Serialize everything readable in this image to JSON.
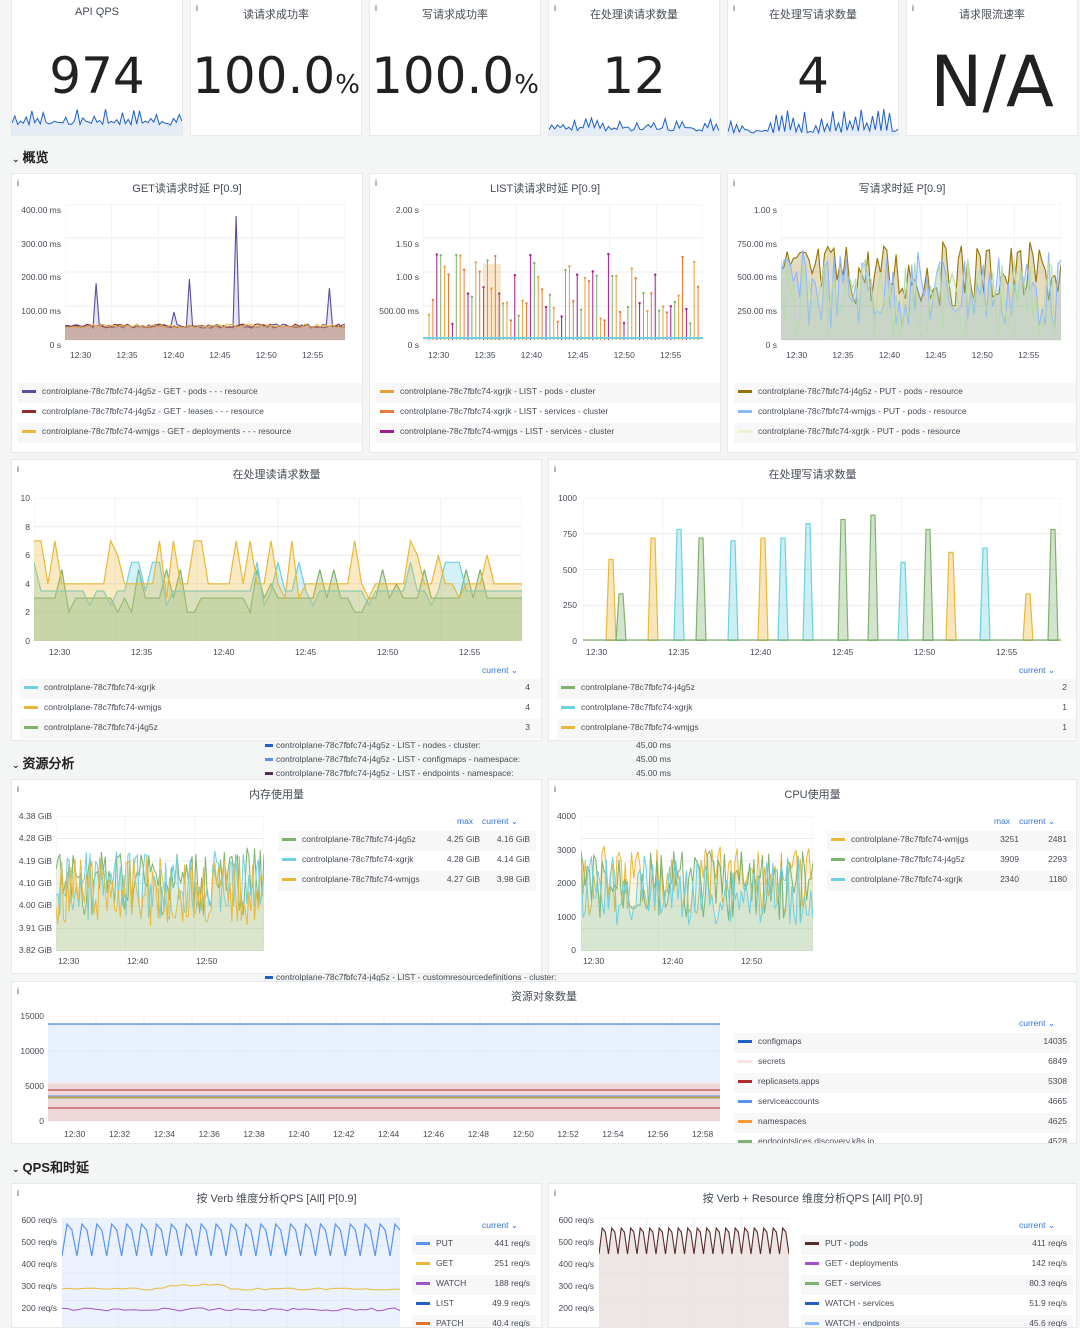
{
  "stats": [
    {
      "title": "API QPS",
      "value": "974",
      "unit": ""
    },
    {
      "title": "读请求成功率",
      "value": "100.0",
      "unit": "%"
    },
    {
      "title": "写请求成功率",
      "value": "100.0",
      "unit": "%"
    },
    {
      "title": "在处理读请求数量",
      "value": "12",
      "unit": ""
    },
    {
      "title": "在处理写请求数量",
      "value": "4",
      "unit": ""
    },
    {
      "title": "请求限流速率",
      "value": "N/A",
      "unit": ""
    }
  ],
  "rows": {
    "overview": "概览",
    "resource": "资源分析",
    "qps": "QPS和时延"
  },
  "info_icon": "i",
  "chevron": "⌄",
  "get_latency": {
    "title": "GET读请求时延 P[0.9]",
    "yticks": [
      "400.00 ms",
      "300.00 ms",
      "200.00 ms",
      "100.00 ms",
      "0 s"
    ],
    "xticks": [
      "12:30",
      "12:35",
      "12:40",
      "12:45",
      "12:50",
      "12:55"
    ],
    "legend": [
      {
        "label": "controlplane-78c7fbfc74-j4g5z - GET - pods - - - resource",
        "color": "#5c4ba0"
      },
      {
        "label": "controlplane-78c7fbfc74-j4g5z - GET - leases - - - resource",
        "color": "#8f2b2b"
      },
      {
        "label": "controlplane-78c7fbfc74-wmjgs - GET - deployments - - - resource",
        "color": "#eab839"
      }
    ]
  },
  "list_latency": {
    "title": "LIST读请求时延 P[0.9]",
    "yticks": [
      "2.00 s",
      "1.50 s",
      "1.00 s",
      "500.00 ms",
      "0 s"
    ],
    "xticks": [
      "12:30",
      "12:35",
      "12:40",
      "12:45",
      "12:50",
      "12:55"
    ],
    "legend": [
      {
        "label": "controlplane-78c7fbfc74-xgrjk - LIST - pods - cluster",
        "color": "#e5a039"
      },
      {
        "label": "controlplane-78c7fbfc74-xgrjk - LIST - services - cluster",
        "color": "#e57a39"
      },
      {
        "label": "controlplane-78c7fbfc74-wmjgs - LIST - services - cluster",
        "color": "#a01c8f"
      }
    ]
  },
  "write_latency": {
    "title": "写请求时延 P[0.9]",
    "yticks": [
      "1.00 s",
      "750.00 ms",
      "500.00 ms",
      "250.00 ms",
      "0 s"
    ],
    "xticks": [
      "12:30",
      "12:35",
      "12:40",
      "12:45",
      "12:50",
      "12:55"
    ],
    "legend": [
      {
        "label": "controlplane-78c7fbfc74-j4g5z - PUT - pods - resource",
        "color": "#967302"
      },
      {
        "label": "controlplane-78c7fbfc74-wmjgs - PUT - pods - resource",
        "color": "#8ab8ff"
      },
      {
        "label": "controlplane-78c7fbfc74-xgrjk - PUT - pods - resource",
        "color": "#e8f5cf"
      }
    ]
  },
  "read_inflight": {
    "title": "在处理读请求数量",
    "yticks": [
      "10",
      "8",
      "6",
      "4",
      "2",
      "0"
    ],
    "xticks": [
      "12:30",
      "12:35",
      "12:40",
      "12:45",
      "12:50",
      "12:55"
    ],
    "current_label": "current",
    "legend": [
      {
        "label": "controlplane-78c7fbfc74-xgrjk",
        "value": "4",
        "color": "#6ed0e0"
      },
      {
        "label": "controlplane-78c7fbfc74-wmjgs",
        "value": "4",
        "color": "#eab839"
      },
      {
        "label": "controlplane-78c7fbfc74-j4g5z",
        "value": "3",
        "color": "#7eb26d"
      }
    ]
  },
  "write_inflight": {
    "title": "在处理写请求数量",
    "yticks": [
      "1000",
      "750",
      "500",
      "250",
      "0"
    ],
    "xticks": [
      "12:30",
      "12:35",
      "12:40",
      "12:45",
      "12:50",
      "12:55"
    ],
    "current_label": "current",
    "legend": [
      {
        "label": "controlplane-78c7fbfc74-j4g5z",
        "value": "2",
        "color": "#7eb26d"
      },
      {
        "label": "controlplane-78c7fbfc74-xgrjk",
        "value": "1",
        "color": "#6ed0e0"
      },
      {
        "label": "controlplane-78c7fbfc74-wmjgs",
        "value": "1",
        "color": "#eab839"
      }
    ]
  },
  "overlay_tooltip": {
    "rows": [
      {
        "label": "controlplane-78c7fbfc74-j4g5z - LIST - nodes - cluster:",
        "value": "45.00 ms"
      },
      {
        "label": "controlplane-78c7fbfc74-j4g5z - LIST - configmaps - namespace:",
        "value": "45.00 ms"
      },
      {
        "label": "controlplane-78c7fbfc74-j4g5z - LIST - endpoints - namespace:",
        "value": "45.00 ms"
      }
    ],
    "bottom_row": "controlplane-78c7fbfc74-j4g5z - LIST - customresourcedefinitions - cluster:"
  },
  "memory": {
    "title": "内存使用量",
    "yticks": [
      "4.38 GiB",
      "4.28 GiB",
      "4.19 GiB",
      "4.10 GiB",
      "4.00 GiB",
      "3.91 GiB",
      "3.82 GiB"
    ],
    "xticks": [
      "12:30",
      "12:40",
      "12:50"
    ],
    "headers": [
      "max",
      "current"
    ],
    "legend": [
      {
        "label": "controlplane-78c7fbfc74-j4g5z",
        "max": "4.25 GiB",
        "current": "4.16 GiB",
        "color": "#7eb26d"
      },
      {
        "label": "controlplane-78c7fbfc74-xgrjk",
        "max": "4.28 GiB",
        "current": "4.14 GiB",
        "color": "#6ed0e0"
      },
      {
        "label": "controlplane-78c7fbfc74-wmjgs",
        "max": "4.27 GiB",
        "current": "3.98 GiB",
        "color": "#eab839"
      }
    ]
  },
  "cpu": {
    "title": "CPU使用量",
    "yticks": [
      "4000",
      "3000",
      "2000",
      "1000",
      "0"
    ],
    "xticks": [
      "12:30",
      "12:40",
      "12:50"
    ],
    "headers": [
      "max",
      "current"
    ],
    "legend": [
      {
        "label": "controlplane-78c7fbfc74-wmjgs",
        "max": "3251",
        "current": "2481",
        "color": "#eab839"
      },
      {
        "label": "controlplane-78c7fbfc74-j4g5z",
        "max": "3909",
        "current": "2293",
        "color": "#7eb26d"
      },
      {
        "label": "controlplane-78c7fbfc74-xgrjk",
        "max": "2340",
        "current": "1180",
        "color": "#6ed0e0"
      }
    ]
  },
  "objects": {
    "title": "资源对象数量",
    "yticks": [
      "15000",
      "10000",
      "5000",
      "0"
    ],
    "xticks": [
      "12:30",
      "12:32",
      "12:34",
      "12:36",
      "12:38",
      "12:40",
      "12:42",
      "12:44",
      "12:46",
      "12:48",
      "12:50",
      "12:52",
      "12:54",
      "12:56",
      "12:58"
    ],
    "current_label": "current",
    "legend": [
      {
        "label": "configmaps",
        "value": "14035",
        "color": "#1f60c4"
      },
      {
        "label": "secrets",
        "value": "6849",
        "color": "#fce2de"
      },
      {
        "label": "replicasets.apps",
        "value": "5308",
        "color": "#b02a2a"
      },
      {
        "label": "serviceaccounts",
        "value": "4665",
        "color": "#5794f2"
      },
      {
        "label": "namespaces",
        "value": "4625",
        "color": "#ff9830"
      },
      {
        "label": "endpointslices.discovery.k8s.io",
        "value": "4528",
        "color": "#7eb26d"
      }
    ]
  },
  "qps_verb": {
    "title": "按 Verb 维度分析QPS [All] P[0.9]",
    "yticks": [
      "600 req/s",
      "500 req/s",
      "400 req/s",
      "300 req/s",
      "200 req/s"
    ],
    "current_label": "current",
    "legend": [
      {
        "label": "PUT",
        "value": "441 req/s",
        "color": "#5794f2"
      },
      {
        "label": "GET",
        "value": "251 req/s",
        "color": "#eab839"
      },
      {
        "label": "WATCH",
        "value": "188 req/s",
        "color": "#a352cc"
      },
      {
        "label": "LIST",
        "value": "49.9 req/s",
        "color": "#1f60c4"
      },
      {
        "label": "PATCH",
        "value": "40.4 req/s",
        "color": "#e0752d"
      }
    ]
  },
  "qps_verb_resource": {
    "title": "按 Verb + Resource 维度分析QPS [All] P[0.9]",
    "yticks": [
      "600 req/s",
      "500 req/s",
      "400 req/s",
      "300 req/s",
      "200 req/s"
    ],
    "current_label": "current",
    "legend": [
      {
        "label": "PUT - pods",
        "value": "411 req/s",
        "color": "#5a2b2b"
      },
      {
        "label": "GET - deployments",
        "value": "142 req/s",
        "color": "#a352cc"
      },
      {
        "label": "GET - services",
        "value": "80.3 req/s",
        "color": "#7eb26d"
      },
      {
        "label": "WATCH - services",
        "value": "51.9 req/s",
        "color": "#1f60c4"
      },
      {
        "label": "WATCH - endpoints",
        "value": "45.6 req/s",
        "color": "#8ab8ff"
      }
    ]
  }
}
